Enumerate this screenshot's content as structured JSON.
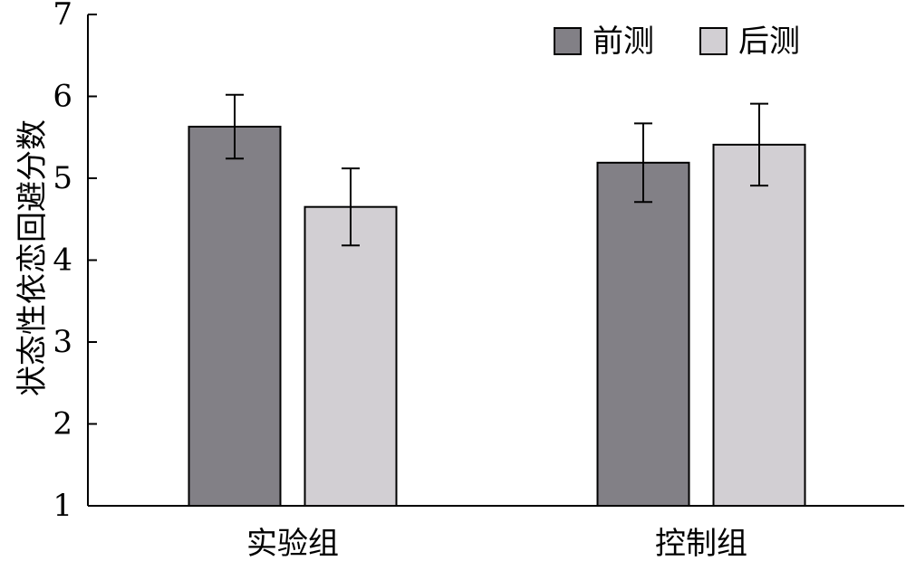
{
  "chart_data": {
    "type": "bar",
    "title": "",
    "xlabel": "",
    "ylabel": "状态性依恋回避分数",
    "ylim": [
      1,
      7
    ],
    "yticks": [
      "1",
      "2",
      "3",
      "4",
      "5",
      "6",
      "7"
    ],
    "categories": [
      "实验组",
      "控制组"
    ],
    "series": [
      {
        "name": "前测",
        "color": "#828086",
        "values": [
          5.63,
          5.19
        ],
        "errors": [
          0.39,
          0.48
        ]
      },
      {
        "name": "后测",
        "color": "#d2cfd3",
        "values": [
          4.65,
          5.41
        ],
        "errors": [
          0.47,
          0.5
        ]
      }
    ],
    "legend": "top-right",
    "grid": false
  }
}
